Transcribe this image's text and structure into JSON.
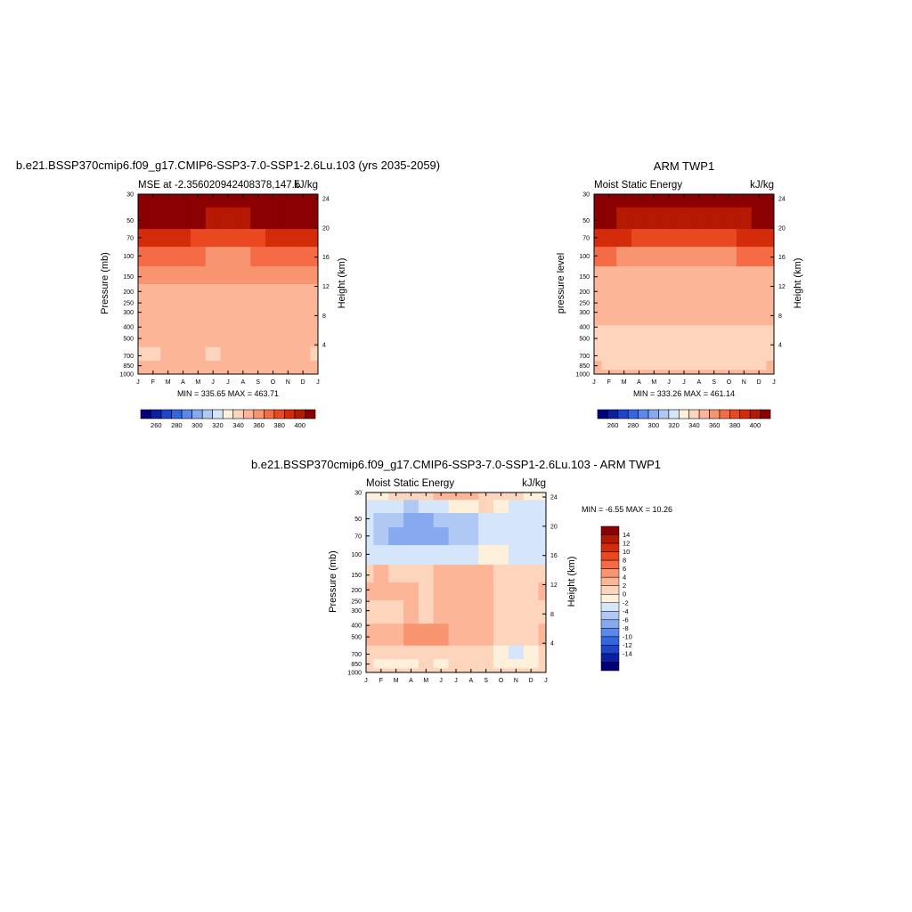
{
  "top_left": {
    "title": "b.e21.BSSP370cmip6.f09_g17.CMIP6-SSP3-7.0-SSP1-2.6Lu.103 (yrs 2035-2059)",
    "left_string": "MSE at -2.356020942408378,147.5",
    "right_string": "kJ/kg",
    "ylabel_left": "Pressure (mb)",
    "ylabel_right": "Height (km)",
    "stats": "MIN = 335.65 MAX = 463.71"
  },
  "top_right": {
    "title": "ARM TWP1",
    "left_string": "Moist Static Energy",
    "right_string": "kJ/kg",
    "ylabel_left": "pressure level",
    "ylabel_right": "Height (km)",
    "stats": "MIN = 333.26 MAX = 461.14"
  },
  "bottom": {
    "title": "b.e21.BSSP370cmip6.f09_g17.CMIP6-SSP3-7.0-SSP1-2.6Lu.103 - ARM TWP1",
    "left_string": "Moist Static Energy",
    "right_string": "kJ/kg",
    "ylabel_left": "Pressure (mb)",
    "ylabel_right": "Height (km)",
    "stats": "MIN =  -6.55 MAX =  10.26"
  },
  "chart_data": [
    {
      "type": "heatmap",
      "panel": "model",
      "x": [
        "J",
        "F",
        "M",
        "A",
        "M",
        "J",
        "J",
        "A",
        "S",
        "O",
        "N",
        "D",
        "J"
      ],
      "pressure_ticks": [
        30,
        50,
        70,
        100,
        150,
        200,
        250,
        300,
        400,
        500,
        700,
        850,
        1000
      ],
      "height_ticks": [
        4,
        8,
        12,
        16,
        20,
        24
      ],
      "levels": [
        30,
        50,
        70,
        100,
        150,
        200,
        300,
        500,
        700,
        850,
        1000
      ],
      "colorbar_labels": [
        "260",
        "280",
        "300",
        "320",
        "340",
        "360",
        "380",
        "400"
      ],
      "values": [
        [
          463,
          463,
          463,
          463,
          463,
          463,
          463,
          463,
          463,
          463,
          463,
          463,
          463
        ],
        [
          408,
          406,
          404,
          402,
          400,
          398,
          398,
          398,
          400,
          402,
          404,
          406,
          408
        ],
        [
          385,
          384,
          383,
          381,
          379,
          377,
          376,
          377,
          379,
          381,
          383,
          384,
          385
        ],
        [
          362,
          361,
          361,
          360,
          360,
          359,
          358,
          359,
          360,
          361,
          361,
          361,
          362
        ],
        [
          354,
          353,
          353,
          352,
          352,
          352,
          352,
          352,
          351,
          350,
          351,
          352,
          354
        ],
        [
          348,
          348,
          348,
          348,
          348,
          348,
          348,
          348,
          348,
          348,
          348,
          348,
          348
        ],
        [
          346,
          346,
          346,
          346,
          346,
          346,
          346,
          346,
          346,
          346,
          346,
          346,
          346
        ],
        [
          342,
          342,
          342,
          342,
          342,
          342,
          342,
          341,
          340,
          341,
          342,
          342,
          342
        ],
        [
          338,
          338,
          340,
          341,
          341,
          339,
          341,
          341,
          341,
          341,
          341,
          341,
          338
        ],
        [
          342,
          342,
          342,
          342,
          342,
          342,
          342,
          342,
          342,
          342,
          342,
          342,
          342
        ],
        [
          344,
          344,
          344,
          344,
          344,
          344,
          344,
          344,
          344,
          344,
          344,
          344,
          344
        ]
      ]
    },
    {
      "type": "heatmap",
      "panel": "obs",
      "x": [
        "J",
        "F",
        "M",
        "A",
        "M",
        "J",
        "J",
        "A",
        "S",
        "O",
        "N",
        "D",
        "J"
      ],
      "pressure_ticks": [
        30,
        50,
        70,
        100,
        150,
        200,
        250,
        300,
        400,
        500,
        700,
        850,
        1000
      ],
      "height_ticks": [
        4,
        8,
        12,
        16,
        20,
        24
      ],
      "levels": [
        30,
        50,
        70,
        100,
        150,
        200,
        300,
        500,
        700,
        850,
        1000
      ],
      "colorbar_labels": [
        "260",
        "280",
        "300",
        "320",
        "340",
        "360",
        "380",
        "400"
      ],
      "values": [
        [
          461,
          461,
          461,
          461,
          461,
          461,
          461,
          461,
          461,
          461,
          461,
          461,
          461
        ],
        [
          402,
          400,
          398,
          396,
          394,
          392,
          392,
          392,
          394,
          396,
          398,
          400,
          402
        ],
        [
          382,
          381,
          380,
          378,
          376,
          374,
          373,
          374,
          376,
          378,
          380,
          381,
          382
        ],
        [
          360,
          360,
          359,
          359,
          358,
          358,
          357,
          358,
          359,
          359,
          360,
          360,
          360
        ],
        [
          349,
          349,
          349,
          349,
          349,
          349,
          349,
          349,
          349,
          349,
          349,
          349,
          349
        ],
        [
          346,
          346,
          346,
          346,
          346,
          346,
          346,
          346,
          346,
          346,
          346,
          346,
          346
        ],
        [
          343,
          343,
          343,
          343,
          343,
          342,
          341,
          341,
          342,
          342,
          342,
          342,
          343
        ],
        [
          339,
          339,
          339,
          339,
          339,
          339,
          339,
          339,
          339,
          339,
          339,
          339,
          339
        ],
        [
          338,
          338,
          338,
          338,
          338,
          338,
          338,
          338,
          338,
          338,
          338,
          338,
          338
        ],
        [
          340,
          339,
          339,
          339,
          339,
          339,
          339,
          339,
          339,
          339,
          339,
          339,
          340
        ],
        [
          342,
          342,
          342,
          342,
          342,
          342,
          342,
          342,
          342,
          342,
          342,
          342,
          342
        ]
      ]
    },
    {
      "type": "heatmap",
      "panel": "difference",
      "x": [
        "J",
        "F",
        "M",
        "A",
        "M",
        "J",
        "J",
        "A",
        "S",
        "O",
        "N",
        "D",
        "J"
      ],
      "pressure_ticks": [
        30,
        50,
        70,
        100,
        150,
        200,
        250,
        300,
        400,
        500,
        700,
        850,
        1000
      ],
      "height_ticks": [
        4,
        8,
        12,
        16,
        20,
        24
      ],
      "levels": [
        30,
        40,
        50,
        70,
        100,
        150,
        200,
        300,
        500,
        700,
        850,
        1000
      ],
      "colorbar_labels": [
        "14",
        "12",
        "10",
        "8",
        "6",
        "4",
        "2",
        "0",
        "-2",
        "-4",
        "-6",
        "-8",
        "-10",
        "-12",
        "-14"
      ],
      "values": [
        [
          1.0,
          1.5,
          2.5,
          2.5,
          3.5,
          5.5,
          5.0,
          4.5,
          3.0,
          3.5,
          2.0,
          1.5,
          1.0
        ],
        [
          -1.0,
          -2.0,
          -1.5,
          -2.5,
          -2.0,
          -1.5,
          0.5,
          1.5,
          2.5,
          1.0,
          -1.0,
          -0.5,
          -1.0
        ],
        [
          -1.0,
          -2.5,
          -4.0,
          -5.5,
          -5.0,
          -4.0,
          -3.5,
          -3.0,
          -2.0,
          -1.5,
          -1.0,
          -1.0,
          -1.0
        ],
        [
          -1.5,
          -2.5,
          -5.0,
          -5.0,
          -4.5,
          -4.5,
          -4.0,
          -3.5,
          -2.0,
          -1.5,
          -1.5,
          -1.5,
          -1.5
        ],
        [
          -0.5,
          -1.0,
          -1.0,
          -1.0,
          -1.0,
          -0.5,
          -0.5,
          -0.5,
          0.5,
          0.5,
          -0.5,
          -0.5,
          -0.5
        ],
        [
          3.5,
          4.0,
          3.5,
          3.5,
          2.5,
          4.5,
          4.5,
          4.5,
          4.0,
          3.5,
          3.0,
          3.0,
          3.5
        ],
        [
          4.0,
          4.5,
          4.5,
          4.0,
          3.5,
          4.5,
          5.5,
          5.5,
          5.0,
          3.5,
          3.0,
          3.0,
          4.0
        ],
        [
          3.5,
          3.5,
          3.5,
          4.0,
          3.5,
          4.5,
          4.5,
          4.5,
          4.0,
          3.5,
          3.5,
          3.5,
          3.5
        ],
        [
          4.0,
          4.0,
          4.5,
          6.0,
          6.5,
          6.5,
          5.0,
          4.5,
          4.0,
          3.0,
          3.0,
          3.5,
          4.0
        ],
        [
          3.0,
          3.0,
          2.5,
          2.5,
          3.5,
          3.0,
          2.5,
          2.0,
          2.5,
          1.5,
          -0.5,
          0.5,
          3.0
        ],
        [
          2.5,
          1.5,
          1.5,
          1.5,
          2.0,
          1.5,
          2.5,
          2.5,
          2.0,
          1.5,
          1.0,
          1.5,
          2.5
        ],
        [
          3.5,
          3.5,
          3.0,
          3.0,
          3.5,
          3.5,
          3.5,
          3.5,
          3.0,
          3.0,
          3.0,
          3.5,
          3.5
        ]
      ]
    }
  ]
}
